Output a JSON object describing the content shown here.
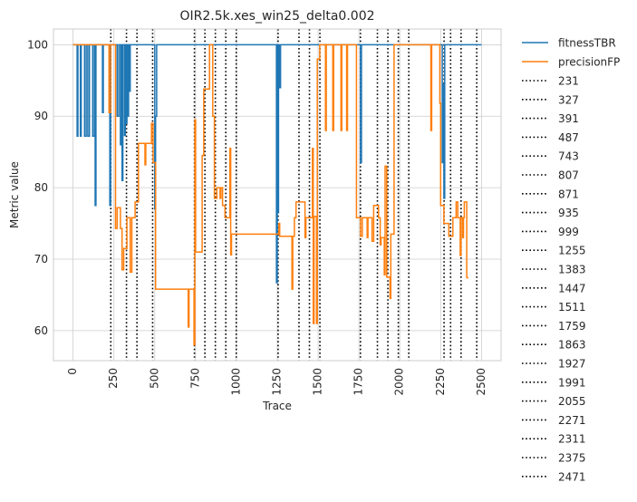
{
  "chart_data": {
    "type": "line",
    "title": "OIR2.5k.xes_win25_delta0.002",
    "xlabel": "Trace",
    "ylabel": "Metric value",
    "xlim": [
      -120,
      2620
    ],
    "ylim": [
      55.8,
      102.2
    ],
    "xticks": [
      0,
      250,
      500,
      750,
      1000,
      1250,
      1500,
      1750,
      2000,
      2250,
      2500
    ],
    "yticks": [
      60,
      70,
      80,
      90,
      100
    ],
    "grid": true,
    "legend_position": "outside-right",
    "drift_points": [
      231,
      327,
      391,
      487,
      743,
      807,
      871,
      935,
      999,
      1255,
      1383,
      1447,
      1511,
      1759,
      1863,
      1927,
      1991,
      2055,
      2271,
      2311,
      2375,
      2471
    ],
    "series": [
      {
        "name": "fitnessTBR",
        "color": "#1f77b4",
        "points": [
          [
            0,
            100
          ],
          [
            25,
            100
          ],
          [
            25,
            87.2
          ],
          [
            30,
            87.2
          ],
          [
            30,
            100
          ],
          [
            45,
            100
          ],
          [
            45,
            87.2
          ],
          [
            50,
            87.2
          ],
          [
            50,
            100
          ],
          [
            70,
            100
          ],
          [
            70,
            87.2
          ],
          [
            80,
            87.2
          ],
          [
            80,
            100
          ],
          [
            90,
            100
          ],
          [
            90,
            87.2
          ],
          [
            100,
            87.2
          ],
          [
            100,
            100
          ],
          [
            120,
            100
          ],
          [
            120,
            87.2
          ],
          [
            130,
            87.2
          ],
          [
            130,
            100
          ],
          [
            135,
            100
          ],
          [
            135,
            77.5
          ],
          [
            140,
            77.5
          ],
          [
            140,
            100
          ],
          [
            180,
            100
          ],
          [
            180,
            90.5
          ],
          [
            185,
            90.5
          ],
          [
            185,
            100
          ],
          [
            225,
            100
          ],
          [
            225,
            77.5
          ],
          [
            230,
            77.5
          ],
          [
            230,
            100
          ],
          [
            270,
            100
          ],
          [
            270,
            90
          ],
          [
            280,
            90
          ],
          [
            280,
            100
          ],
          [
            290,
            100
          ],
          [
            290,
            86
          ],
          [
            295,
            86
          ],
          [
            295,
            100
          ],
          [
            300,
            100
          ],
          [
            300,
            81
          ],
          [
            305,
            81
          ],
          [
            305,
            100
          ],
          [
            315,
            100
          ],
          [
            315,
            87.3
          ],
          [
            320,
            87.3
          ],
          [
            320,
            100
          ],
          [
            325,
            100
          ],
          [
            325,
            89
          ],
          [
            330,
            89
          ],
          [
            330,
            100
          ],
          [
            335,
            100
          ],
          [
            335,
            90
          ],
          [
            340,
            90
          ],
          [
            340,
            100
          ],
          [
            345,
            100
          ],
          [
            345,
            93.5
          ],
          [
            350,
            93.5
          ],
          [
            350,
            100
          ],
          [
            500,
            100
          ],
          [
            500,
            77
          ],
          [
            505,
            77
          ],
          [
            505,
            90
          ],
          [
            512,
            90
          ],
          [
            512,
            100
          ],
          [
            1245,
            100
          ],
          [
            1245,
            66.7
          ],
          [
            1250,
            66.7
          ],
          [
            1250,
            100
          ],
          [
            1255,
            100
          ],
          [
            1255,
            76.5
          ],
          [
            1258,
            76.5
          ],
          [
            1258,
            97
          ],
          [
            1262,
            97
          ],
          [
            1262,
            100
          ],
          [
            1265,
            100
          ],
          [
            1265,
            94
          ],
          [
            1270,
            94
          ],
          [
            1270,
            100
          ],
          [
            1760,
            100
          ],
          [
            1760,
            83.5
          ],
          [
            1765,
            83.5
          ],
          [
            1765,
            100
          ],
          [
            2260,
            100
          ],
          [
            2260,
            83.5
          ],
          [
            2265,
            83.5
          ],
          [
            2265,
            94.5
          ],
          [
            2270,
            94.5
          ],
          [
            2270,
            78.5
          ],
          [
            2275,
            78.5
          ],
          [
            2275,
            100
          ],
          [
            2500,
            100
          ]
        ]
      },
      {
        "name": "precisionFP",
        "color": "#ff7f0e",
        "points": [
          [
            0,
            100
          ],
          [
            220,
            100
          ],
          [
            220,
            90.5
          ],
          [
            230,
            90.5
          ],
          [
            230,
            100
          ],
          [
            260,
            100
          ],
          [
            260,
            74.3
          ],
          [
            270,
            74.3
          ],
          [
            270,
            77.2
          ],
          [
            290,
            77.2
          ],
          [
            290,
            74.3
          ],
          [
            300,
            74.3
          ],
          [
            300,
            68.5
          ],
          [
            310,
            68.5
          ],
          [
            310,
            71.5
          ],
          [
            330,
            71.5
          ],
          [
            330,
            75.8
          ],
          [
            350,
            75.8
          ],
          [
            350,
            68.2
          ],
          [
            360,
            68.2
          ],
          [
            360,
            75.8
          ],
          [
            380,
            75.8
          ],
          [
            380,
            78
          ],
          [
            400,
            78
          ],
          [
            400,
            86.2
          ],
          [
            440,
            86.2
          ],
          [
            440,
            83.2
          ],
          [
            445,
            83.2
          ],
          [
            445,
            86.2
          ],
          [
            480,
            86.2
          ],
          [
            480,
            89
          ],
          [
            490,
            89
          ],
          [
            490,
            83.5
          ],
          [
            505,
            83.5
          ],
          [
            505,
            65.8
          ],
          [
            705,
            65.8
          ],
          [
            705,
            60.5
          ],
          [
            710,
            60.5
          ],
          [
            710,
            65.8
          ],
          [
            740,
            65.8
          ],
          [
            740,
            58
          ],
          [
            745,
            58
          ],
          [
            745,
            89.5
          ],
          [
            750,
            89.5
          ],
          [
            750,
            71
          ],
          [
            790,
            71
          ],
          [
            790,
            84.5
          ],
          [
            800,
            84.5
          ],
          [
            800,
            93.8
          ],
          [
            835,
            93.8
          ],
          [
            835,
            100
          ],
          [
            855,
            100
          ],
          [
            855,
            90
          ],
          [
            865,
            90
          ],
          [
            865,
            78.5
          ],
          [
            880,
            78.5
          ],
          [
            880,
            80
          ],
          [
            900,
            80
          ],
          [
            900,
            78.5
          ],
          [
            905,
            78.5
          ],
          [
            905,
            80
          ],
          [
            915,
            80
          ],
          [
            915,
            77.5
          ],
          [
            930,
            77.5
          ],
          [
            930,
            75.8
          ],
          [
            960,
            75.8
          ],
          [
            960,
            85.5
          ],
          [
            965,
            85.5
          ],
          [
            965,
            70.6
          ],
          [
            970,
            70.6
          ],
          [
            970,
            73.5
          ],
          [
            1260,
            73.5
          ],
          [
            1260,
            75
          ],
          [
            1265,
            75
          ],
          [
            1265,
            73.2
          ],
          [
            1340,
            73.2
          ],
          [
            1340,
            65.8
          ],
          [
            1345,
            65.8
          ],
          [
            1345,
            73.2
          ],
          [
            1355,
            73.2
          ],
          [
            1355,
            75.8
          ],
          [
            1365,
            75.8
          ],
          [
            1365,
            78
          ],
          [
            1420,
            78
          ],
          [
            1420,
            73
          ],
          [
            1425,
            73
          ],
          [
            1425,
            75.8
          ],
          [
            1465,
            75.8
          ],
          [
            1465,
            85.5
          ],
          [
            1470,
            85.5
          ],
          [
            1470,
            61
          ],
          [
            1475,
            61
          ],
          [
            1475,
            76
          ],
          [
            1490,
            76
          ],
          [
            1490,
            61
          ],
          [
            1495,
            61
          ],
          [
            1495,
            98
          ],
          [
            1510,
            98
          ],
          [
            1510,
            100
          ],
          [
            1545,
            100
          ],
          [
            1545,
            88
          ],
          [
            1550,
            88
          ],
          [
            1550,
            100
          ],
          [
            1590,
            100
          ],
          [
            1590,
            88
          ],
          [
            1595,
            88
          ],
          [
            1595,
            100
          ],
          [
            1640,
            100
          ],
          [
            1640,
            88
          ],
          [
            1645,
            88
          ],
          [
            1645,
            100
          ],
          [
            1675,
            100
          ],
          [
            1675,
            88
          ],
          [
            1680,
            88
          ],
          [
            1680,
            100
          ],
          [
            1735,
            100
          ],
          [
            1735,
            75.8
          ],
          [
            1760,
            75.8
          ],
          [
            1760,
            73.2
          ],
          [
            1770,
            73.2
          ],
          [
            1770,
            75.8
          ],
          [
            1800,
            75.8
          ],
          [
            1800,
            73
          ],
          [
            1805,
            73
          ],
          [
            1805,
            75.8
          ],
          [
            1830,
            75.8
          ],
          [
            1830,
            72.5
          ],
          [
            1840,
            72.5
          ],
          [
            1840,
            77.5
          ],
          [
            1870,
            77.5
          ],
          [
            1870,
            75.8
          ],
          [
            1880,
            75.8
          ],
          [
            1880,
            72
          ],
          [
            1885,
            72
          ],
          [
            1885,
            73
          ],
          [
            1905,
            73
          ],
          [
            1905,
            67.8
          ],
          [
            1910,
            67.8
          ],
          [
            1910,
            83
          ],
          [
            1920,
            83
          ],
          [
            1920,
            67.5
          ],
          [
            1940,
            67.5
          ],
          [
            1940,
            64.5
          ],
          [
            1945,
            64.5
          ],
          [
            1945,
            73.5
          ],
          [
            1965,
            73.5
          ],
          [
            1965,
            100
          ],
          [
            2190,
            100
          ],
          [
            2190,
            88
          ],
          [
            2195,
            88
          ],
          [
            2195,
            100
          ],
          [
            2245,
            100
          ],
          [
            2245,
            91.8
          ],
          [
            2250,
            91.8
          ],
          [
            2250,
            77.5
          ],
          [
            2270,
            77.5
          ],
          [
            2270,
            75
          ],
          [
            2300,
            75
          ],
          [
            2300,
            73.2
          ],
          [
            2325,
            73.2
          ],
          [
            2325,
            75.8
          ],
          [
            2345,
            75.8
          ],
          [
            2345,
            78
          ],
          [
            2355,
            78
          ],
          [
            2355,
            75.8
          ],
          [
            2370,
            75.8
          ],
          [
            2370,
            70.5
          ],
          [
            2375,
            70.5
          ],
          [
            2375,
            75.8
          ],
          [
            2385,
            75.8
          ],
          [
            2385,
            73
          ],
          [
            2390,
            73
          ],
          [
            2390,
            75.8
          ],
          [
            2395,
            75.8
          ],
          [
            2395,
            78
          ],
          [
            2410,
            78
          ],
          [
            2410,
            67.4
          ],
          [
            2420,
            67.4
          ]
        ]
      }
    ]
  }
}
